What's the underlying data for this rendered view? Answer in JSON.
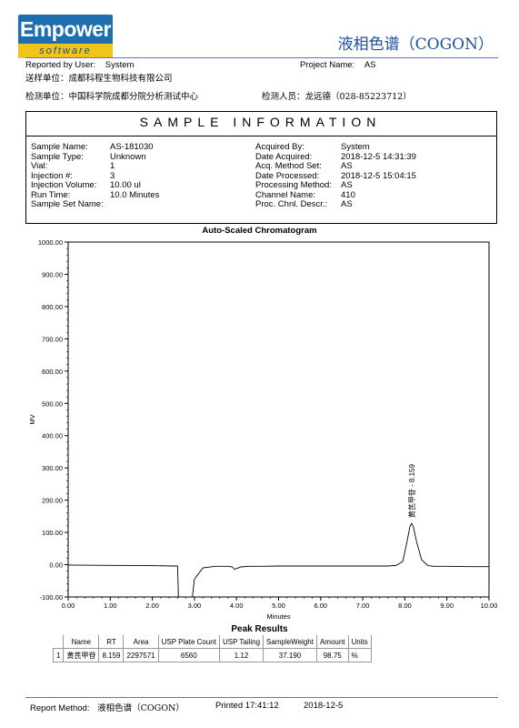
{
  "logo": {
    "top": "Empower",
    "bottom": "software"
  },
  "doc_title": "液相色谱（COGON）",
  "header": {
    "reported_by_label": "Reported by User:",
    "reported_by_value": "System",
    "project_label": "Project Name:",
    "project_value": "AS",
    "sender_label": "送样单位：",
    "sender_value": "成都科程生物科技有限公司",
    "lab_label": "检测单位：",
    "lab_value": "中国科学院成都分院分析测试中心",
    "tester_label": "检测人员：",
    "tester_value": "龙远德（028-85223712）"
  },
  "sample_info": {
    "title": "SAMPLE INFORMATION",
    "left": [
      {
        "label": "Sample Name:",
        "value": "AS-181030"
      },
      {
        "label": "Sample Type:",
        "value": "Unknown"
      },
      {
        "label": "Vial:",
        "value": "1"
      },
      {
        "label": "Injection #:",
        "value": "3"
      },
      {
        "label": "Injection Volume:",
        "value": "10.00 ul"
      },
      {
        "label": "Run Time:",
        "value": "10.0 Minutes"
      },
      {
        "label": "Sample Set Name:",
        "value": ""
      }
    ],
    "right": [
      {
        "label": "Acquired By:",
        "value": "System"
      },
      {
        "label": "Date Acquired:",
        "value": "2018-12-5 14:31:39"
      },
      {
        "label": "Acq. Method Set:",
        "value": "AS"
      },
      {
        "label": "Date Processed:",
        "value": "2018-12-5 15:04:15"
      },
      {
        "label": "Processing Method:",
        "value": "AS"
      },
      {
        "label": "Channel Name:",
        "value": "410"
      },
      {
        "label": "Proc. Chnl. Descr.:",
        "value": "AS"
      }
    ]
  },
  "chart_data": {
    "type": "line",
    "title": "Auto-Scaled Chromatogram",
    "xlabel": "Minutes",
    "ylabel": "MV",
    "xlim": [
      0,
      10
    ],
    "ylim": [
      -100,
      1000
    ],
    "x_ticks": [
      "0.00",
      "1.00",
      "2.00",
      "3.00",
      "4.00",
      "5.00",
      "6.00",
      "7.00",
      "8.00",
      "9.00",
      "10.00"
    ],
    "y_ticks": [
      "-100.00",
      "0.00",
      "100.00",
      "200.00",
      "300.00",
      "400.00",
      "500.00",
      "600.00",
      "700.00",
      "800.00",
      "900.00",
      "1000.00"
    ],
    "grid": false,
    "series": [
      {
        "x": [
          0,
          1,
          2,
          2.5,
          2.6,
          2.62,
          2.95,
          3.0,
          3.2,
          3.5,
          3.8,
          3.9,
          3.95,
          4.0,
          4.1,
          4.3,
          4.6,
          5,
          6,
          7,
          7.6,
          7.8,
          7.95,
          8.05,
          8.12,
          8.159,
          8.2,
          8.28,
          8.4,
          8.55,
          8.7,
          9,
          9.5,
          10
        ],
        "y": [
          -1,
          -2,
          -3,
          -4,
          -4,
          -100,
          -100,
          -45,
          -10,
          -5,
          -5,
          -7,
          -14,
          -12,
          -7,
          -5,
          -5,
          -4,
          -4,
          -4,
          -4,
          -2,
          10,
          70,
          118,
          128,
          118,
          70,
          15,
          -3,
          -5,
          -5,
          -6,
          -6
        ]
      }
    ],
    "annotations": [
      {
        "x": 8.159,
        "text": "黄芪甲苷 - 8.159"
      }
    ]
  },
  "peak_results": {
    "title": "Peak Results",
    "columns": [
      "",
      "Name",
      "RT",
      "Area",
      "USP Plate Count",
      "USP Tailing",
      "SampleWeight",
      "Amount",
      "Units"
    ],
    "rows": [
      [
        "1",
        "黄芪甲苷",
        "8.159",
        "2297571",
        "6560",
        "1.12",
        "37.190",
        "98.75",
        "%"
      ]
    ]
  },
  "footer": {
    "report_method_label": "Report Method:",
    "report_method_value": "液相色谱（COGON）",
    "printed": "Printed 17:41:12",
    "date": "2018-12-5"
  }
}
